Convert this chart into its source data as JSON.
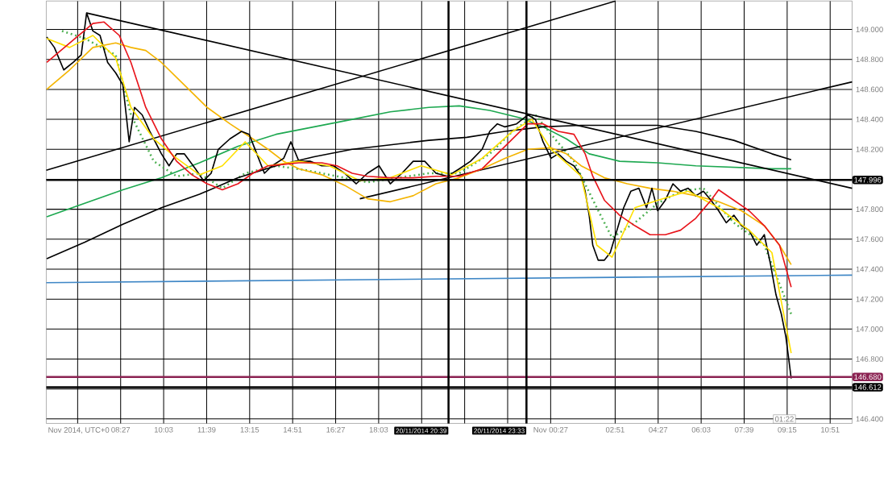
{
  "chart_data": {
    "type": "line",
    "x": [
      "2014-11-20T05:42",
      "2014-11-20T05:59",
      "2014-11-20T06:20",
      "2014-11-20T06:41",
      "2014-11-20T06:59",
      "2014-11-20T07:11",
      "2014-11-20T07:25",
      "2014-11-20T07:41",
      "2014-11-20T07:58",
      "2014-11-20T08:16",
      "2014-11-20T08:32",
      "2014-11-20T08:46",
      "2014-11-20T08:58",
      "2014-11-20T09:15",
      "2014-11-20T09:32",
      "2014-11-20T09:58",
      "2014-11-20T10:15",
      "2014-11-20T10:32",
      "2014-11-20T10:49",
      "2014-11-20T11:14",
      "2014-11-20T11:32",
      "2014-11-20T11:49",
      "2014-11-20T12:05",
      "2014-11-20T12:31",
      "2014-11-20T12:57",
      "2014-11-20T13:14",
      "2014-11-20T13:31",
      "2014-11-20T13:48",
      "2014-11-20T14:05",
      "2014-11-20T14:31",
      "2014-11-20T14:47",
      "2014-11-20T15:05",
      "2014-11-20T15:30",
      "2014-11-20T15:56",
      "2014-11-20T16:22",
      "2014-11-20T16:47",
      "2014-11-20T17:13",
      "2014-11-20T17:38",
      "2014-11-20T18:04",
      "2014-11-20T18:29",
      "2014-11-20T18:55",
      "2014-11-20T19:20",
      "2014-11-20T19:46",
      "2014-11-20T20:11",
      "2014-11-20T20:37",
      "2014-11-20T21:03",
      "2014-11-20T21:28",
      "2014-11-20T21:54",
      "2014-11-20T22:11",
      "2014-11-20T22:28",
      "2014-11-20T22:45",
      "2014-11-20T23:11",
      "2014-11-20T23:36",
      "2014-11-20T23:53",
      "2014-11-21T00:10",
      "2014-11-21T00:28",
      "2014-11-21T00:44",
      "2014-11-21T01:02",
      "2014-11-21T01:19",
      "2014-11-21T01:35",
      "2014-11-21T01:44",
      "2014-11-21T01:53",
      "2014-11-21T02:01",
      "2014-11-21T02:13",
      "2014-11-21T02:27",
      "2014-11-21T02:40",
      "2014-11-21T02:52",
      "2014-11-21T03:10",
      "2014-11-21T03:26",
      "2014-11-21T03:44",
      "2014-11-21T04:01",
      "2014-11-21T04:13",
      "2014-11-21T04:26",
      "2014-11-21T04:43",
      "2014-11-21T05:00",
      "2014-11-21T05:17",
      "2014-11-21T05:34",
      "2014-11-21T05:51",
      "2014-11-21T06:08",
      "2014-11-21T06:25",
      "2014-11-21T06:42",
      "2014-11-21T06:59",
      "2014-11-21T07:16",
      "2014-11-21T07:33",
      "2014-11-21T07:50",
      "2014-11-21T08:07",
      "2014-11-21T08:24",
      "2014-11-21T08:38",
      "2014-11-21T08:50",
      "2014-11-21T09:02",
      "2014-11-21T09:12",
      "2014-11-21T09:19",
      "2014-11-21T09:24"
    ],
    "series": [
      {
        "color": "#4caf50",
        "line_style": "dotted",
        "x": [
          "2014-11-20T06:16",
          "2014-11-20T07:07",
          "2014-11-20T08:16",
          "2014-11-20T08:50",
          "2014-11-20T09:41",
          "2014-11-20T10:32",
          "2014-11-20T11:23",
          "2014-11-20T12:14",
          "2014-11-20T13:05",
          "2014-11-20T14:14",
          "2014-11-20T15:22",
          "2014-11-20T16:30",
          "2014-11-20T17:38",
          "2014-11-20T18:46",
          "2014-11-20T19:55",
          "2014-11-20T21:03",
          "2014-11-20T22:11",
          "2014-11-20T23:02",
          "2014-11-20T23:53",
          "2014-11-21T00:28",
          "2014-11-21T01:19",
          "2014-11-21T02:10",
          "2014-11-21T02:44",
          "2014-11-21T03:35",
          "2014-11-21T04:26",
          "2014-11-21T05:17",
          "2014-11-21T06:08",
          "2014-11-21T07:16",
          "2014-11-21T08:24",
          "2014-11-21T08:58",
          "2014-11-21T09:24"
        ],
        "values": [
          148.99,
          148.94,
          148.83,
          148.43,
          148.12,
          148.02,
          148.04,
          147.94,
          148.04,
          148.09,
          148.06,
          148.02,
          147.98,
          148.01,
          148.04,
          148.04,
          148.17,
          148.32,
          148.43,
          148.3,
          148.12,
          147.81,
          147.61,
          147.71,
          147.84,
          147.92,
          147.94,
          147.71,
          147.56,
          147.3,
          147.1
        ]
      },
      {
        "color": "#1da850",
        "x": [
          "2014-11-20T05:42",
          "2014-11-20T07:07",
          "2014-11-20T08:32",
          "2014-11-20T09:58",
          "2014-11-20T11:23",
          "2014-11-20T12:49",
          "2014-11-20T14:14",
          "2014-11-20T15:39",
          "2014-11-20T17:04",
          "2014-11-20T18:29",
          "2014-11-20T19:55",
          "2014-11-20T21:03",
          "2014-11-20T22:11",
          "2014-11-20T23:19",
          "2014-11-21T00:10",
          "2014-11-21T01:02",
          "2014-11-21T01:53",
          "2014-11-21T03:01",
          "2014-11-21T04:26",
          "2014-11-21T05:51",
          "2014-11-21T07:16",
          "2014-11-21T08:41",
          "2014-11-21T09:24"
        ],
        "values": [
          147.75,
          147.84,
          147.93,
          148.01,
          148.11,
          148.22,
          148.3,
          148.35,
          148.4,
          148.45,
          148.48,
          148.49,
          148.46,
          148.41,
          148.35,
          148.27,
          148.17,
          148.12,
          148.11,
          148.09,
          148.08,
          148.07,
          148.07
        ]
      },
      {
        "color": "#000000",
        "x": [
          "2014-11-20T05:42",
          "2014-11-20T07:07",
          "2014-11-20T08:32",
          "2014-11-20T09:58",
          "2014-11-20T11:23",
          "2014-11-20T12:49",
          "2014-11-20T14:14",
          "2014-11-20T15:39",
          "2014-11-20T17:04",
          "2014-11-20T18:29",
          "2014-11-20T19:55",
          "2014-11-20T21:20",
          "2014-11-20T22:45",
          "2014-11-21T00:10",
          "2014-11-21T01:35",
          "2014-11-21T03:01",
          "2014-11-21T04:26",
          "2014-11-21T05:51",
          "2014-11-21T07:16",
          "2014-11-21T08:41",
          "2014-11-21T09:24"
        ],
        "values": [
          147.47,
          147.58,
          147.7,
          147.81,
          147.9,
          148.01,
          148.09,
          148.15,
          148.2,
          148.23,
          148.26,
          148.28,
          148.32,
          148.35,
          148.36,
          148.36,
          148.36,
          148.32,
          148.26,
          148.17,
          148.13
        ]
      },
      {
        "color": "#3f87c6",
        "x": [
          "2014-11-20T05:41",
          "2014-11-21T11:40"
        ],
        "values": [
          147.31,
          147.36
        ]
      },
      {
        "color": "#000000",
        "x": [
          "2014-11-20T07:11",
          "2014-11-21T11:40"
        ],
        "values": [
          149.11,
          147.94
        ]
      },
      {
        "color": "#000000",
        "x": [
          "2014-11-20T05:41",
          "2014-11-21T02:52"
        ],
        "values": [
          148.06,
          149.19
        ]
      },
      {
        "color": "#000000",
        "x": [
          "2014-11-20T17:21",
          "2014-11-21T11:40"
        ],
        "values": [
          147.87,
          148.65
        ]
      },
      {
        "color": "#f4b400",
        "x": [
          "2014-11-20T05:42",
          "2014-11-20T06:33",
          "2014-11-20T07:25",
          "2014-11-20T08:16",
          "2014-11-20T08:50",
          "2014-11-20T09:23",
          "2014-11-20T09:58",
          "2014-11-20T10:49",
          "2014-11-20T11:40",
          "2014-11-20T12:31",
          "2014-11-20T13:22",
          "2014-11-20T13:56",
          "2014-11-20T14:31",
          "2014-11-20T15:05",
          "2014-11-20T15:56",
          "2014-11-20T16:47",
          "2014-11-20T17:38",
          "2014-11-20T18:29",
          "2014-11-20T19:20",
          "2014-11-20T20:11",
          "2014-11-20T21:03",
          "2014-11-20T21:54",
          "2014-11-20T22:45",
          "2014-11-20T23:36",
          "2014-11-21T00:28",
          "2014-11-21T01:02",
          "2014-11-21T01:35",
          "2014-11-21T02:27",
          "2014-11-21T03:18",
          "2014-11-21T04:09",
          "2014-11-21T05:00",
          "2014-11-21T05:51",
          "2014-11-21T06:42",
          "2014-11-21T07:33",
          "2014-11-21T08:24",
          "2014-11-21T08:58",
          "2014-11-21T09:24"
        ],
        "values": [
          148.6,
          148.73,
          148.88,
          148.91,
          148.88,
          148.86,
          148.78,
          148.63,
          148.48,
          148.37,
          148.27,
          148.2,
          148.12,
          148.07,
          148.03,
          147.96,
          147.87,
          147.85,
          147.89,
          147.97,
          148.01,
          148.07,
          148.14,
          148.2,
          148.21,
          148.17,
          148.09,
          148.01,
          147.97,
          147.94,
          147.92,
          147.89,
          147.85,
          147.79,
          147.69,
          147.56,
          147.43
        ]
      },
      {
        "color": "#000000",
        "values": [
          148.95,
          148.88,
          148.73,
          148.78,
          148.83,
          149.11,
          148.99,
          148.96,
          148.78,
          148.71,
          148.63,
          148.25,
          148.48,
          148.43,
          148.32,
          148.17,
          148.09,
          148.17,
          148.17,
          148.07,
          147.99,
          148.04,
          148.2,
          148.27,
          148.32,
          148.3,
          148.17,
          148.04,
          148.09,
          148.14,
          148.25,
          148.12,
          148.12,
          148.09,
          148.09,
          148.04,
          147.97,
          148.04,
          148.09,
          147.97,
          148.04,
          148.12,
          148.12,
          148.04,
          148.02,
          148.07,
          148.12,
          148.2,
          148.32,
          148.37,
          148.35,
          148.37,
          148.43,
          148.4,
          148.25,
          148.14,
          148.17,
          148.12,
          148.09,
          148.02,
          147.92,
          147.76,
          147.56,
          147.46,
          147.46,
          147.51,
          147.63,
          147.81,
          147.92,
          147.94,
          147.81,
          147.94,
          147.79,
          147.86,
          147.97,
          147.92,
          147.94,
          147.89,
          147.92,
          147.86,
          147.79,
          147.71,
          147.76,
          147.69,
          147.66,
          147.56,
          147.63,
          147.43,
          147.23,
          147.1,
          146.95,
          146.79,
          146.67
        ]
      },
      {
        "color": "#ffe000",
        "x": [
          "2014-11-20T05:42",
          "2014-11-20T06:33",
          "2014-11-20T07:25",
          "2014-11-20T08:16",
          "2014-11-20T08:50",
          "2014-11-20T09:41",
          "2014-11-20T10:32",
          "2014-11-20T11:23",
          "2014-11-20T12:14",
          "2014-11-20T13:05",
          "2014-11-20T13:56",
          "2014-11-20T15:05",
          "2014-11-20T16:13",
          "2014-11-20T17:21",
          "2014-11-20T18:29",
          "2014-11-20T19:38",
          "2014-11-20T20:46",
          "2014-11-20T21:54",
          "2014-11-20T23:02",
          "2014-11-20T23:45",
          "2014-11-21T00:28",
          "2014-11-21T01:35",
          "2014-11-21T02:10",
          "2014-11-21T02:44",
          "2014-11-21T03:35",
          "2014-11-21T04:26",
          "2014-11-21T05:34",
          "2014-11-21T06:42",
          "2014-11-21T07:50",
          "2014-11-21T08:41",
          "2014-11-21T09:24"
        ],
        "values": [
          148.94,
          148.88,
          148.96,
          148.81,
          148.48,
          148.27,
          148.14,
          148.03,
          148.09,
          148.25,
          148.09,
          148.12,
          148.09,
          147.99,
          148.01,
          148.09,
          148.03,
          148.14,
          148.32,
          148.4,
          148.2,
          148.02,
          147.56,
          147.48,
          147.81,
          147.86,
          147.92,
          147.81,
          147.66,
          147.51,
          146.84
        ]
      },
      {
        "color": "#e8141b",
        "x": [
          "2014-11-20T05:42",
          "2014-11-20T07:25",
          "2014-11-20T07:50",
          "2014-11-20T08:24",
          "2014-11-20T08:50",
          "2014-11-20T09:23",
          "2014-11-20T09:58",
          "2014-11-20T10:32",
          "2014-11-20T11:06",
          "2014-11-20T11:40",
          "2014-11-20T12:14",
          "2014-11-20T12:49",
          "2014-11-20T13:22",
          "2014-11-20T13:56",
          "2014-11-20T14:31",
          "2014-11-20T15:05",
          "2014-11-20T15:56",
          "2014-11-20T16:30",
          "2014-11-20T17:04",
          "2014-11-20T17:38",
          "2014-11-20T18:29",
          "2014-11-20T19:20",
          "2014-11-20T20:11",
          "2014-11-20T21:03",
          "2014-11-20T21:54",
          "2014-11-20T22:45",
          "2014-11-20T23:36",
          "2014-11-21T00:10",
          "2014-11-21T00:44",
          "2014-11-21T01:19",
          "2014-11-21T01:44",
          "2014-11-21T02:01",
          "2014-11-21T02:27",
          "2014-11-21T03:01",
          "2014-11-21T03:35",
          "2014-11-21T04:09",
          "2014-11-21T04:43",
          "2014-11-21T05:17",
          "2014-11-21T05:51",
          "2014-11-21T06:25",
          "2014-11-21T06:42",
          "2014-11-21T07:16",
          "2014-11-21T07:50",
          "2014-11-21T08:24",
          "2014-11-21T08:58",
          "2014-11-21T09:24"
        ],
        "values": [
          148.78,
          149.04,
          149.05,
          148.96,
          148.78,
          148.48,
          148.27,
          148.12,
          148.03,
          147.97,
          147.93,
          147.97,
          148.04,
          148.09,
          148.1,
          148.11,
          148.11,
          148.09,
          148.04,
          148.02,
          148.01,
          148.01,
          148.02,
          148.02,
          148.07,
          148.22,
          148.37,
          148.37,
          148.32,
          148.3,
          148.17,
          148.02,
          147.86,
          147.76,
          147.69,
          147.63,
          147.63,
          147.66,
          147.74,
          147.86,
          147.93,
          147.86,
          147.79,
          147.69,
          147.56,
          147.28
        ]
      }
    ],
    "xlim": [
      "2014-11-20T05:41",
      "2014-11-21T11:40"
    ],
    "ylim": [
      146.37,
      149.19
    ],
    "xticks": [
      {
        "value": "2014-11-20T06:51",
        "label": null
      },
      {
        "value": "2014-11-20T08:27",
        "label": "08:27"
      },
      {
        "value": "2014-11-20T10:03",
        "label": "10:03"
      },
      {
        "value": "2014-11-20T11:39",
        "label": "11:39"
      },
      {
        "value": "2014-11-20T13:15",
        "label": "13:15"
      },
      {
        "value": "2014-11-20T14:51",
        "label": "14:51"
      },
      {
        "value": "2014-11-20T16:27",
        "label": "16:27"
      },
      {
        "value": "2014-11-20T18:03",
        "label": "18:03"
      },
      {
        "value": "2014-11-20T19:39",
        "label": null
      },
      {
        "value": "2014-11-20T21:15",
        "label": null
      },
      {
        "value": "2014-11-20T22:51",
        "label": null
      },
      {
        "value": "2014-11-21T00:27",
        "label": "Nov 00:27"
      },
      {
        "value": "2014-11-21T02:51",
        "label": "02:51"
      },
      {
        "value": "2014-11-21T04:27",
        "label": "04:27"
      },
      {
        "value": "2014-11-21T06:03",
        "label": "06:03"
      },
      {
        "value": "2014-11-21T07:39",
        "label": "07:39"
      },
      {
        "value": "2014-11-21T09:15",
        "label": "09:15"
      },
      {
        "value": "2014-11-21T10:51",
        "label": "10:51"
      }
    ],
    "yticks": [
      {
        "value": 146.4,
        "label": "146.400"
      },
      {
        "value": 146.6,
        "label": null
      },
      {
        "value": 146.8,
        "label": "146.800"
      },
      {
        "value": 147.0,
        "label": "147.000"
      },
      {
        "value": 147.2,
        "label": "147.200"
      },
      {
        "value": 147.4,
        "label": "147.400"
      },
      {
        "value": 147.6,
        "label": "147.600"
      },
      {
        "value": 147.8,
        "label": "147.800"
      },
      {
        "value": 148.0,
        "label": null
      },
      {
        "value": 148.2,
        "label": "148.200"
      },
      {
        "value": 148.4,
        "label": "148.400"
      },
      {
        "value": 148.6,
        "label": "148.600"
      },
      {
        "value": 148.8,
        "label": "148.800"
      },
      {
        "value": 149.0,
        "label": "149.000"
      }
    ],
    "grid": true,
    "ref_lines": [
      {
        "axis": "y",
        "value": 147.996,
        "label": "147.996",
        "color": "#000000"
      },
      {
        "axis": "y",
        "value": 146.68,
        "label": "146.680",
        "color": "#8b2252"
      },
      {
        "axis": "y",
        "value": 146.612,
        "label": "146.612",
        "color": "#000000"
      },
      {
        "axis": "x",
        "value": "2014-11-20T20:39",
        "label": "20/11/2014 20:39",
        "color": "#000000"
      },
      {
        "axis": "x",
        "value": "2014-11-20T23:33",
        "label": "20/11/2014 23:33",
        "color": "#000000"
      }
    ],
    "annotations": [
      "01:22",
      "Nov 2014, UTC+0"
    ]
  }
}
